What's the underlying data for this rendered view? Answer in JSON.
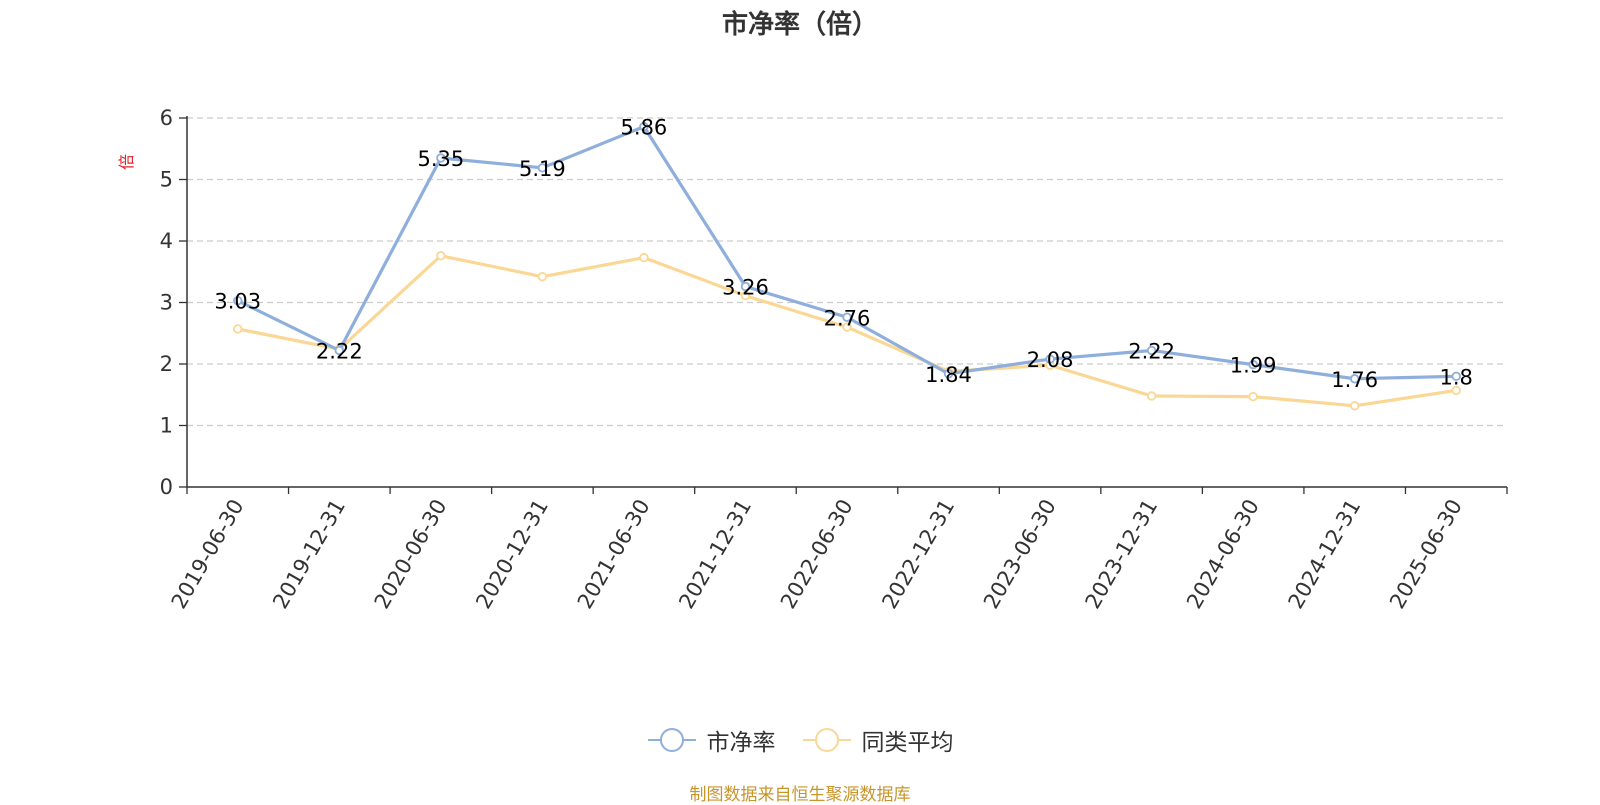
{
  "title": "市净率（倍）",
  "source_text": "制图数据来自恒生聚源数据库",
  "colors": {
    "series1": "#8eaedb",
    "series2": "#fad795",
    "ylabel": "#e0232a",
    "source": "#c8952b",
    "grid": "#cccccc",
    "axis": "#333333"
  },
  "chart_data": {
    "type": "line",
    "title": "市净率（倍）",
    "ylabel": "倍",
    "xlabel": "",
    "ylim": [
      0,
      6
    ],
    "yticks": [
      0,
      1,
      2,
      3,
      4,
      5,
      6
    ],
    "grid": true,
    "legend_position": "bottom-center",
    "categories": [
      "2019-06-30",
      "2019-12-31",
      "2020-06-30",
      "2020-12-31",
      "2021-06-30",
      "2021-12-31",
      "2022-06-30",
      "2022-12-31",
      "2023-06-30",
      "2023-12-31",
      "2024-06-30",
      "2024-12-31",
      "2025-06-30"
    ],
    "series": [
      {
        "name": "市净率",
        "values": [
          3.03,
          2.22,
          5.35,
          5.19,
          5.86,
          3.26,
          2.76,
          1.84,
          2.08,
          2.22,
          1.99,
          1.76,
          1.8
        ],
        "data_labels": [
          "3.03",
          "2.22",
          "5.35",
          "5.19",
          "5.86",
          "3.26",
          "2.76",
          "1.84",
          "2.08",
          "2.22",
          "1.99",
          "1.76",
          "1.8"
        ]
      },
      {
        "name": "同类平均",
        "values": [
          2.57,
          2.24,
          3.76,
          3.42,
          3.73,
          3.11,
          2.6,
          1.88,
          1.98,
          1.48,
          1.47,
          1.32,
          1.57
        ]
      }
    ]
  }
}
